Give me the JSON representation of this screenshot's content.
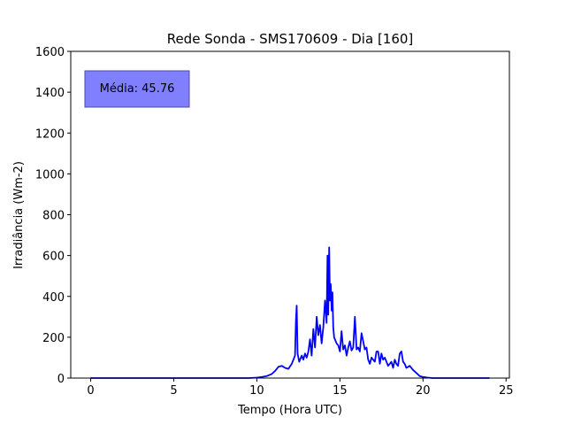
{
  "chart_data": {
    "type": "line",
    "title": "Rede Sonda - SMS170609 - Dia [160]",
    "xlabel": "Tempo (Hora UTC)",
    "ylabel": "Irradiância (Wm-2)",
    "xlim": [
      -1.2,
      25.2
    ],
    "ylim": [
      0,
      1600
    ],
    "xticks": [
      0,
      5,
      10,
      15,
      20,
      25
    ],
    "yticks": [
      0,
      200,
      400,
      600,
      800,
      1000,
      1200,
      1400,
      1600
    ],
    "grid": false,
    "line_color": "#0000ff",
    "annotation": {
      "text": "Média: 45.76",
      "fill": "#8080ff",
      "edge": "#4d4d99",
      "placement": "top-left"
    },
    "series": [
      {
        "x": [
          0,
          1,
          2,
          3,
          4,
          5,
          6,
          7,
          8,
          9,
          9.5,
          10,
          10.3,
          10.6,
          10.9,
          11.1,
          11.3,
          11.5,
          11.7,
          11.9,
          12.1,
          12.3,
          12.35,
          12.4,
          12.45,
          12.55,
          12.7,
          12.8,
          12.9,
          13.0,
          13.1,
          13.2,
          13.3,
          13.4,
          13.5,
          13.6,
          13.7,
          13.8,
          13.9,
          14.0,
          14.1,
          14.2,
          14.25,
          14.3,
          14.35,
          14.4,
          14.45,
          14.5,
          14.55,
          14.6,
          14.65,
          14.7,
          14.8,
          14.9,
          15.0,
          15.1,
          15.2,
          15.3,
          15.4,
          15.5,
          15.6,
          15.7,
          15.8,
          15.9,
          16.0,
          16.1,
          16.2,
          16.3,
          16.4,
          16.5,
          16.6,
          16.7,
          16.8,
          16.9,
          17.0,
          17.1,
          17.2,
          17.3,
          17.4,
          17.5,
          17.6,
          17.7,
          17.8,
          17.9,
          18.0,
          18.1,
          18.2,
          18.3,
          18.4,
          18.5,
          18.6,
          18.7,
          18.8,
          18.9,
          19.0,
          19.2,
          19.4,
          19.6,
          19.8,
          20.0,
          20.3,
          20.6,
          21.0,
          22,
          23,
          24
        ],
        "y": [
          0,
          0,
          0,
          0,
          0,
          0,
          0,
          0,
          0,
          0,
          0,
          2,
          5,
          10,
          20,
          35,
          55,
          60,
          50,
          45,
          70,
          110,
          280,
          355,
          120,
          80,
          110,
          90,
          120,
          100,
          130,
          190,
          110,
          240,
          150,
          300,
          210,
          260,
          170,
          250,
          380,
          270,
          600,
          310,
          640,
          380,
          460,
          330,
          420,
          250,
          200,
          190,
          170,
          160,
          130,
          230,
          140,
          160,
          110,
          150,
          180,
          135,
          150,
          300,
          140,
          150,
          130,
          220,
          180,
          140,
          150,
          90,
          70,
          100,
          90,
          80,
          130,
          130,
          70,
          120,
          90,
          100,
          80,
          60,
          70,
          80,
          50,
          90,
          70,
          60,
          120,
          130,
          80,
          70,
          50,
          60,
          40,
          25,
          10,
          5,
          2,
          0,
          0,
          0,
          0,
          0
        ]
      }
    ]
  }
}
